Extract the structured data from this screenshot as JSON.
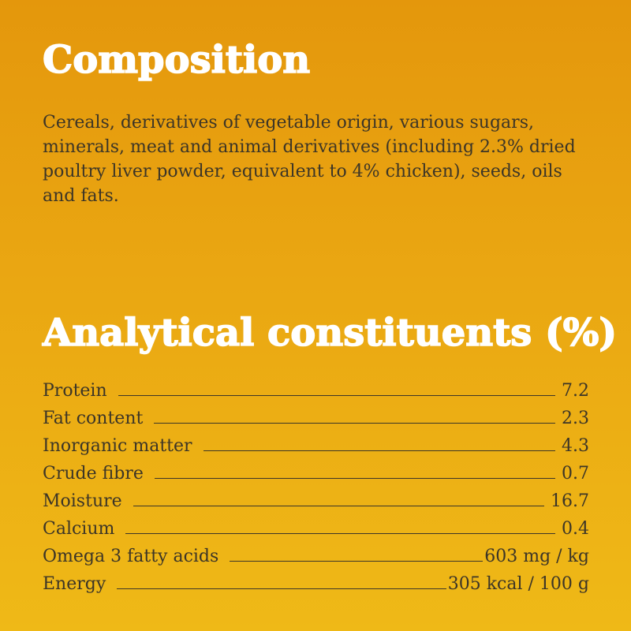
{
  "composition": {
    "title": "Composition",
    "text": "Cereals, derivatives of vegetable origin, various sugars, minerals, meat and animal derivatives (including 2.3% dried poultry liver powder, equivalent to 4% chicken), seeds, oils and fats."
  },
  "analytical": {
    "title": "Analytical constituents (%)",
    "rows": [
      {
        "label": "Protein",
        "value": "7.2"
      },
      {
        "label": "Fat content",
        "value": "2.3"
      },
      {
        "label": "Inorganic matter",
        "value": "4.3"
      },
      {
        "label": "Crude fibre",
        "value": "0.7"
      },
      {
        "label": "Moisture",
        "value": "16.7"
      },
      {
        "label": "Calcium",
        "value": "0.4"
      },
      {
        "label": "Omega 3 fatty acids",
        "value": "603 mg / kg"
      },
      {
        "label": "Energy",
        "value": "305 kcal / 100 g"
      }
    ]
  },
  "colors": {
    "background_top": "#e4970c",
    "background_bottom": "#efb917",
    "heading": "#ffffff",
    "body_text": "#3c3527"
  }
}
